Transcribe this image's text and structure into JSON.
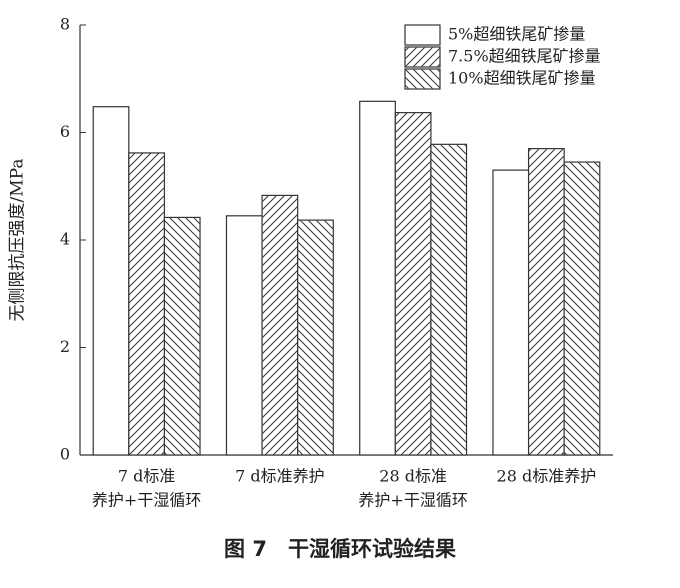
{
  "chart_data": {
    "type": "bar",
    "title": "图 7　干湿循环试验结果",
    "y_label": "无侧限抗压强度/MPa",
    "categories": [
      [
        "7 d标准",
        "养护+干湿循环"
      ],
      [
        "7 d标准养护"
      ],
      [
        "28 d标准",
        "养护+干湿循环"
      ],
      [
        "28 d标准养护"
      ]
    ],
    "series": [
      {
        "name": "5%超细铁尾矿掺量",
        "color": "#ffffff",
        "hatch": "none",
        "values": [
          6.48,
          4.45,
          6.58,
          5.3
        ]
      },
      {
        "name": "7.5%超细铁尾矿掺量",
        "color": "#ffffff",
        "hatch": "/",
        "values": [
          5.62,
          4.83,
          6.37,
          5.7
        ]
      },
      {
        "name": "10%超细铁尾矿掺量",
        "color": "#ffffff",
        "hatch": "\\",
        "values": [
          4.42,
          4.37,
          5.78,
          5.45
        ]
      }
    ],
    "ylim": [
      0,
      8
    ],
    "yticks": [
      0,
      2,
      4,
      6,
      8
    ],
    "grid": false,
    "legend": "upper right"
  }
}
